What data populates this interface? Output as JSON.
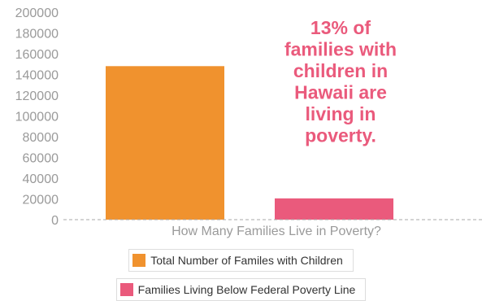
{
  "chart_data": {
    "type": "bar",
    "categories": [
      "Total Number of Familes with Children",
      "Families Living Below Federal Poverty Line"
    ],
    "values": [
      148000,
      20500
    ],
    "xlabel": "How Many Families Live in Poverty?",
    "ylabel": "",
    "ylim": [
      0,
      200000
    ],
    "yticks": [
      0,
      20000,
      40000,
      60000,
      80000,
      100000,
      120000,
      140000,
      160000,
      180000,
      200000
    ],
    "grid": false,
    "legend_position": "bottom",
    "colors": [
      "#F0922E",
      "#EA5A7C"
    ],
    "annotation": [
      "13% of",
      "families with",
      "children in",
      "Hawaii are",
      "living in",
      "poverty."
    ],
    "annotation_color": "#EA5A7C",
    "baseline_color": "#aaaaaa"
  }
}
